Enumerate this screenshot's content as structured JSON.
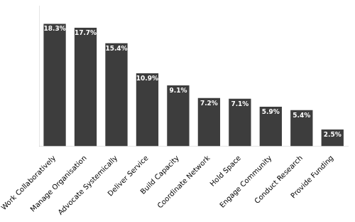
{
  "chart_data": {
    "type": "bar",
    "categories": [
      "Work Collaboratively",
      "Manage Organisation",
      "Advocate Systemically",
      "Deliver Service",
      "Build Capacity",
      "Coordinate Network",
      "Hold Space",
      "Engage Community",
      "Conduct Research",
      "Provide Funding"
    ],
    "values": [
      18.3,
      17.7,
      15.4,
      10.9,
      9.1,
      7.2,
      7.1,
      5.9,
      5.4,
      2.5
    ],
    "value_labels": [
      "18.3%",
      "17.7%",
      "15.4%",
      "10.9%",
      "9.1%",
      "7.2%",
      "7.1%",
      "5.9%",
      "5.4%",
      "2.5%"
    ],
    "data_labels": true,
    "color": "#3d3d3d",
    "ylim": [
      0,
      21
    ],
    "grid": false,
    "tick_labels": "x"
  }
}
